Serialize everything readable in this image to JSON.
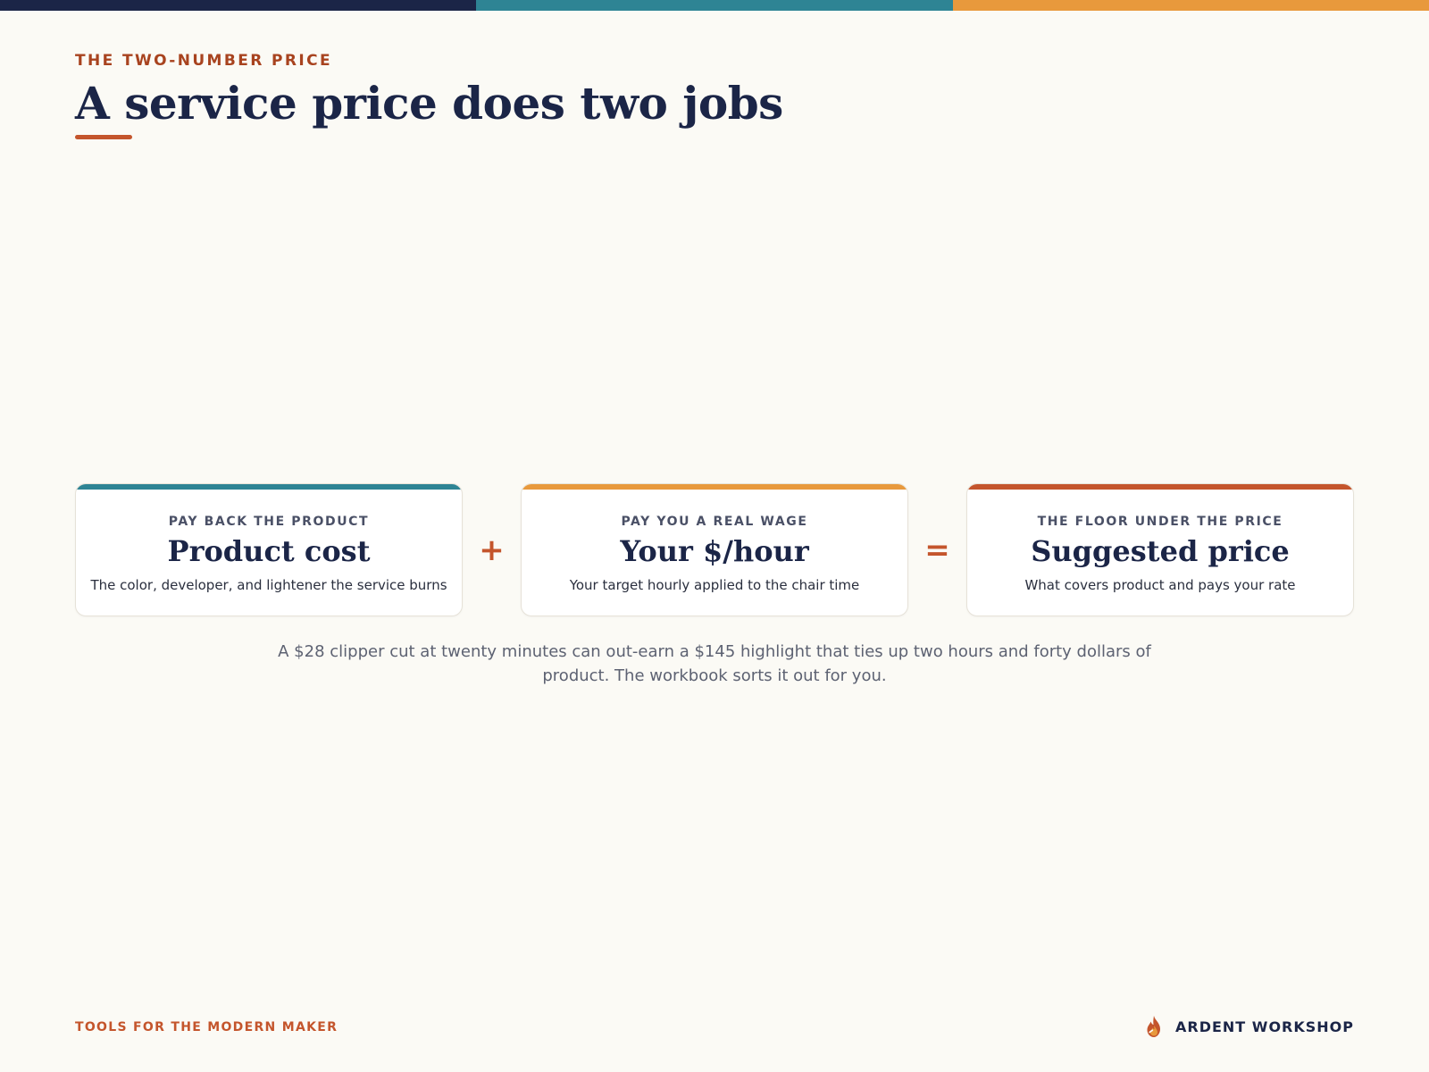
{
  "colors": {
    "navy": "#1b2547",
    "teal": "#2e8494",
    "amber": "#e8993c",
    "rust": "#c4552c",
    "background": "#fbfaf5"
  },
  "header": {
    "eyebrow": "THE TWO-NUMBER PRICE",
    "title": "A service price does two jobs"
  },
  "equation": {
    "cards": [
      {
        "kicker": "PAY BACK THE PRODUCT",
        "name": "Product cost",
        "description": "The color, developer, and lightener the service burns",
        "accent": "teal"
      },
      {
        "kicker": "PAY YOU A REAL WAGE",
        "name": "Your $/hour",
        "description": "Your target hourly applied to the chair time",
        "accent": "amber"
      },
      {
        "kicker": "THE FLOOR UNDER THE PRICE",
        "name": "Suggested price",
        "description": "What covers product and pays your rate",
        "accent": "rust"
      }
    ],
    "operators": [
      "+",
      "="
    ]
  },
  "caption": "A $28 clipper cut at twenty minutes can out-earn a $145 highlight that ties up two hours and forty dollars of product. The workbook sorts it out for you.",
  "footer": {
    "tagline": "TOOLS FOR THE MODERN MAKER",
    "brand": "ARDENT WORKSHOP",
    "brand_icon": "flame-icon"
  }
}
